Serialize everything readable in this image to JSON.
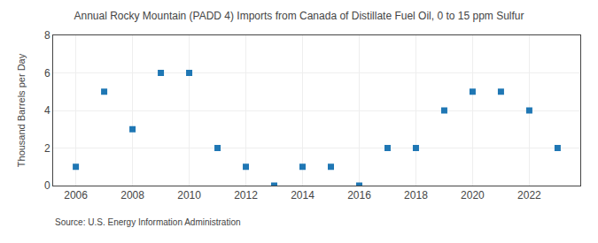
{
  "chart_data": {
    "type": "scatter",
    "title": "Annual Rocky Mountain (PADD 4) Imports from Canada of Distillate Fuel Oil, 0 to 15 ppm Sulfur",
    "ylabel": "Thousand Barrels per Day",
    "annotations": [
      "Source: U.S. Energy Information Administration"
    ],
    "x": [
      2006,
      2007,
      2008,
      2009,
      2010,
      2011,
      2012,
      2013,
      2014,
      2015,
      2016,
      2017,
      2018,
      2019,
      2020,
      2021,
      2022,
      2023
    ],
    "values": [
      1,
      5,
      3,
      6,
      6,
      2,
      1,
      0,
      1,
      1,
      0,
      2,
      2,
      4,
      5,
      5,
      4,
      2
    ],
    "marker": "square",
    "xlim": [
      2005.2,
      2023.8
    ],
    "xticks": [
      2006,
      2008,
      2010,
      2012,
      2014,
      2016,
      2018,
      2020,
      2022
    ],
    "ylim": [
      0,
      8
    ],
    "yticks": [
      0,
      2,
      4,
      6,
      8
    ],
    "grid": true
  }
}
